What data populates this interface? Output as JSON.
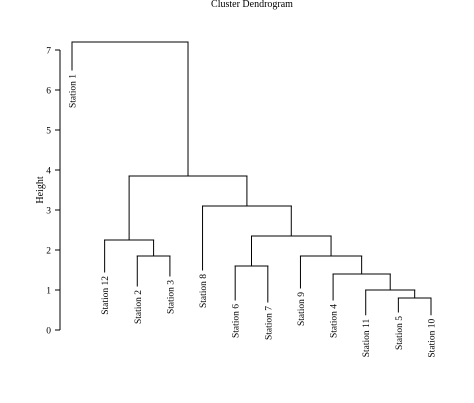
{
  "chart_data": {
    "type": "dendrogram",
    "title": "Cluster Dendrogram",
    "ylabel": "Height",
    "xlabel": "",
    "ylim": [
      0,
      7.6
    ],
    "yticks": [
      0,
      1,
      2,
      3,
      4,
      5,
      6,
      7
    ],
    "leaves": [
      "Station 1",
      "Station 12",
      "Station 2",
      "Station 3",
      "Station 8",
      "Station 6",
      "Station 7",
      "Station 9",
      "Station 4",
      "Station 11",
      "Station 5",
      "Station 10"
    ],
    "merges": [
      {
        "left": "Station 5",
        "right": "Station 10",
        "height": 0.8
      },
      {
        "left": "Station 11",
        "right": "cluster:Station 5+Station 10",
        "height": 1.0
      },
      {
        "left": "Station 4",
        "right": "cluster:Station 11+Station 5+Station 10",
        "height": 1.4
      },
      {
        "left": "Station 2",
        "right": "Station 3",
        "height": 1.85
      },
      {
        "left": "Station 9",
        "right": "cluster:Station 4+Station 11+Station 5+Station 10",
        "height": 1.85
      },
      {
        "left": "Station 6",
        "right": "Station 7",
        "height": 1.6
      },
      {
        "left": "Station 12",
        "right": "cluster:Station 2+Station 3",
        "height": 2.25
      },
      {
        "left": "cluster:Station 6+Station 7",
        "right": "cluster:Station 9+Station 4+Station 11+Station 5+Station 10",
        "height": 2.35
      },
      {
        "left": "Station 8",
        "right": "cluster:Station 6+Station 7+Station 9+Station 4+Station 11+Station 5+Station 10",
        "height": 3.1
      },
      {
        "left": "cluster:Station 12+Station 2+Station 3",
        "right": "cluster:Station 8+Station 6+Station 7+Station 9+Station 4+Station 11+Station 5+Station 10",
        "height": 3.85
      },
      {
        "left": "Station 1",
        "right": "cluster:Station 12+Station 2+Station 3+Station 8+Station 6+Station 7+Station 9+Station 4+Station 11+Station 5+Station 10",
        "height": 7.2
      }
    ],
    "leaf_heights": {
      "Station 1": 6.5,
      "Station 12": 1.45,
      "Station 2": 1.1,
      "Station 3": 1.35,
      "Station 8": 1.5,
      "Station 6": 0.75,
      "Station 7": 0.7,
      "Station 9": 1.05,
      "Station 4": 0.75,
      "Station 11": 0.38,
      "Station 5": 0.45,
      "Station 10": 0.38
    },
    "grid": false,
    "legend": "none"
  }
}
